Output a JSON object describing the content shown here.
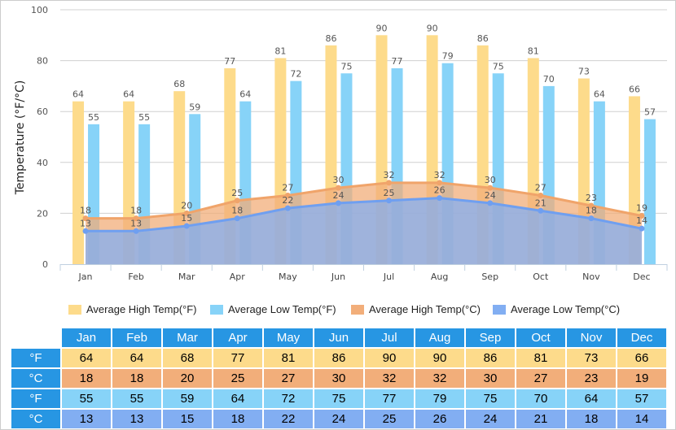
{
  "chart_data": {
    "type": "bar+area",
    "ylabel": "Temperature (°F/°C)",
    "ylim": [
      0,
      100
    ],
    "yticks": [
      0,
      20,
      40,
      60,
      80,
      100
    ],
    "grid": true,
    "legend_placement": "bottom",
    "categories": [
      "Jan",
      "Feb",
      "Mar",
      "Apr",
      "May",
      "Jun",
      "Jul",
      "Aug",
      "Sep",
      "Oct",
      "Nov",
      "Dec"
    ],
    "series": [
      {
        "name": "Average High Temp(°F)",
        "kind": "bar",
        "color": "#fddb8b",
        "values": [
          64,
          64,
          68,
          77,
          81,
          86,
          90,
          90,
          86,
          81,
          73,
          66
        ]
      },
      {
        "name": "Average Low Temp(°F)",
        "kind": "bar",
        "color": "#87d3f8",
        "values": [
          55,
          55,
          59,
          64,
          72,
          75,
          77,
          79,
          75,
          70,
          64,
          57
        ]
      },
      {
        "name": "Average High Temp(°C)",
        "kind": "area",
        "color": "#f2ae7a",
        "values": [
          18,
          18,
          20,
          25,
          27,
          30,
          32,
          32,
          30,
          27,
          23,
          19
        ]
      },
      {
        "name": "Average Low Temp(°C)",
        "kind": "area",
        "color": "#82aef2",
        "values": [
          13,
          13,
          15,
          18,
          22,
          24,
          25,
          26,
          24,
          21,
          18,
          14
        ]
      }
    ]
  },
  "table": {
    "row_labels": [
      "°F",
      "°C",
      "°F",
      "°C"
    ],
    "row_colors": [
      "#fddb8b",
      "#f2ae7a",
      "#87d3f8",
      "#82aef2"
    ]
  }
}
